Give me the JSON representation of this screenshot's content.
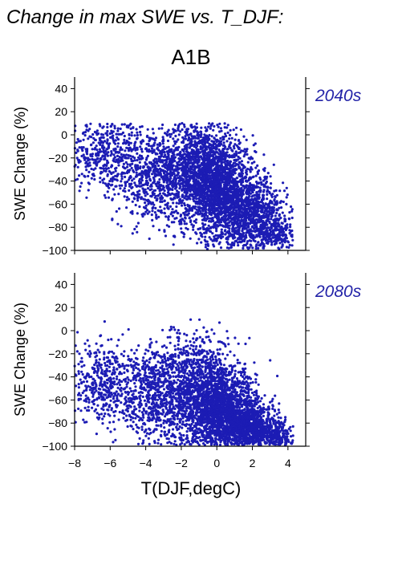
{
  "figure": {
    "title": "Change in max SWE vs. T_DJF:",
    "scenario": "A1B",
    "xlabel": "T(DJF,degC)",
    "point_color": "#1c1cb4",
    "label_color": "#2323a8"
  },
  "chart_data": [
    {
      "type": "scatter",
      "panel_label": "2040s",
      "ylabel": "SWE Change (%)",
      "xlim": [
        -8,
        5
      ],
      "ylim": [
        -100,
        50
      ],
      "xticks": [
        -8,
        -6,
        -4,
        -2,
        0,
        2,
        4
      ],
      "yticks": [
        40,
        20,
        0,
        -20,
        -40,
        -60,
        -80,
        -100
      ],
      "grid": false,
      "point_count_approx": 5000,
      "clusters": [
        {
          "x_center": -6.5,
          "x_spread": 1.1,
          "y_center": -15,
          "y_spread": 17,
          "n": 420
        },
        {
          "x_center": -3.8,
          "x_spread": 1.0,
          "y_center": -35,
          "y_spread": 20,
          "n": 600
        },
        {
          "x_center": -1.2,
          "x_spread": 1.0,
          "y_center": -30,
          "y_spread": 22,
          "n": 1300
        },
        {
          "x_center": 0.3,
          "x_spread": 0.9,
          "y_center": -50,
          "y_spread": 22,
          "n": 1500
        },
        {
          "x_center": 2.0,
          "x_spread": 0.9,
          "y_center": -70,
          "y_spread": 16,
          "n": 900
        },
        {
          "x_center": 3.4,
          "x_spread": 0.5,
          "y_center": -85,
          "y_spread": 8,
          "n": 200
        }
      ]
    },
    {
      "type": "scatter",
      "panel_label": "2080s",
      "ylabel": "SWE Change (%)",
      "xlim": [
        -8,
        5
      ],
      "ylim": [
        -100,
        50
      ],
      "xticks": [
        -8,
        -6,
        -4,
        -2,
        0,
        2,
        4
      ],
      "yticks": [
        40,
        20,
        0,
        -20,
        -40,
        -60,
        -80,
        -100
      ],
      "grid": false,
      "point_count_approx": 5000,
      "clusters": [
        {
          "x_center": -6.5,
          "x_spread": 1.0,
          "y_center": -45,
          "y_spread": 18,
          "n": 450
        },
        {
          "x_center": -3.5,
          "x_spread": 1.0,
          "y_center": -55,
          "y_spread": 22,
          "n": 700
        },
        {
          "x_center": -1.0,
          "x_spread": 1.0,
          "y_center": -55,
          "y_spread": 25,
          "n": 1300
        },
        {
          "x_center": 0.5,
          "x_spread": 0.9,
          "y_center": -70,
          "y_spread": 18,
          "n": 1500
        },
        {
          "x_center": 2.0,
          "x_spread": 0.8,
          "y_center": -85,
          "y_spread": 10,
          "n": 900
        },
        {
          "x_center": 3.4,
          "x_spread": 0.5,
          "y_center": -92,
          "y_spread": 6,
          "n": 200
        }
      ]
    }
  ]
}
